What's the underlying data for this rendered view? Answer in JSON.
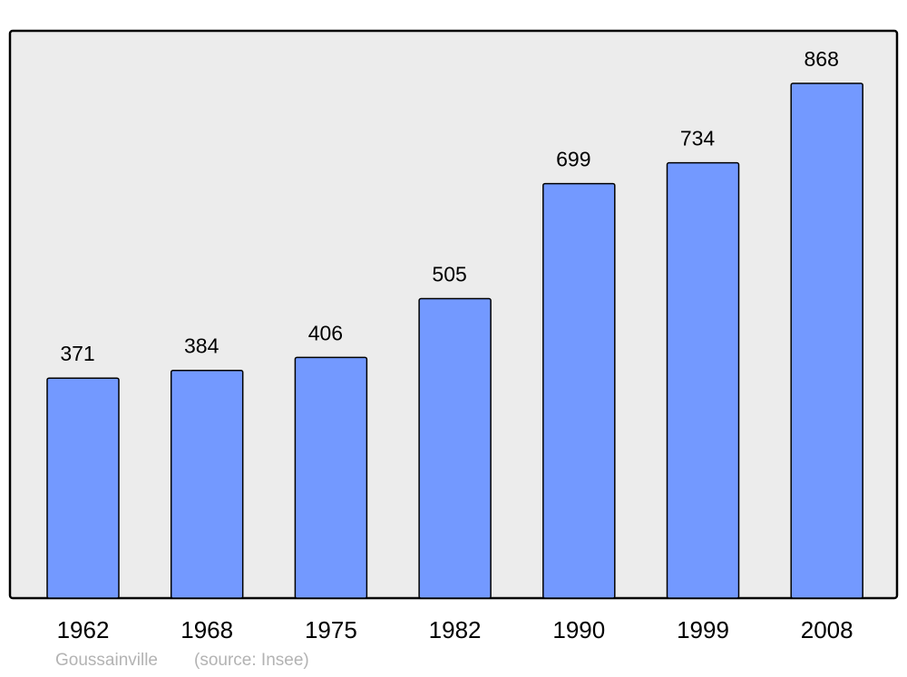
{
  "chart_data": {
    "type": "bar",
    "categories": [
      "1962",
      "1968",
      "1975",
      "1982",
      "1990",
      "1999",
      "2008"
    ],
    "values": [
      371,
      384,
      406,
      505,
      699,
      734,
      868
    ],
    "title": "",
    "xlabel": "",
    "ylabel": "",
    "ylim": [
      0,
      868
    ],
    "grid": false,
    "data_labels": true,
    "colors": {
      "bar": "#7399ff",
      "background": "#ececec",
      "border": "#000000"
    }
  },
  "footer": {
    "place": "Goussainville",
    "source": "(source: Insee)"
  }
}
